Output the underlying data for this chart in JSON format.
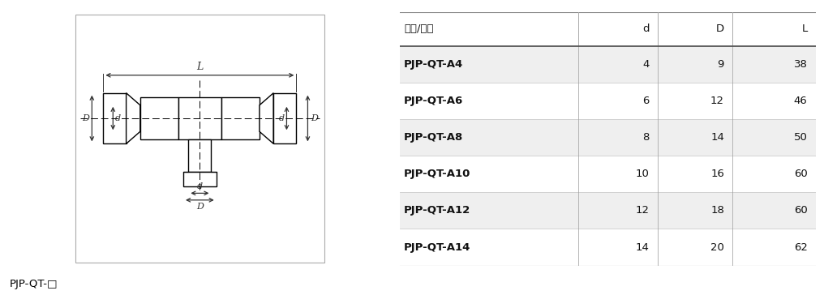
{
  "table_headers": [
    "型号/尺寸",
    "d",
    "D",
    "L"
  ],
  "table_rows": [
    [
      "PJP-QT-A4",
      "4",
      "9",
      "38"
    ],
    [
      "PJP-QT-A6",
      "6",
      "12",
      "46"
    ],
    [
      "PJP-QT-A8",
      "8",
      "14",
      "50"
    ],
    [
      "PJP-QT-A10",
      "10",
      "16",
      "60"
    ],
    [
      "PJP-QT-A12",
      "12",
      "18",
      "60"
    ],
    [
      "PJP-QT-A14",
      "14",
      "20",
      "62"
    ]
  ],
  "shaded_rows": [
    0,
    2,
    4
  ],
  "label_bottom": "PJP-QT-□",
  "bg_color": "#ffffff",
  "line_color": "#000000",
  "shade_color": "#efefef",
  "border_color": "#aaaaaa",
  "dim_color": "#333333"
}
